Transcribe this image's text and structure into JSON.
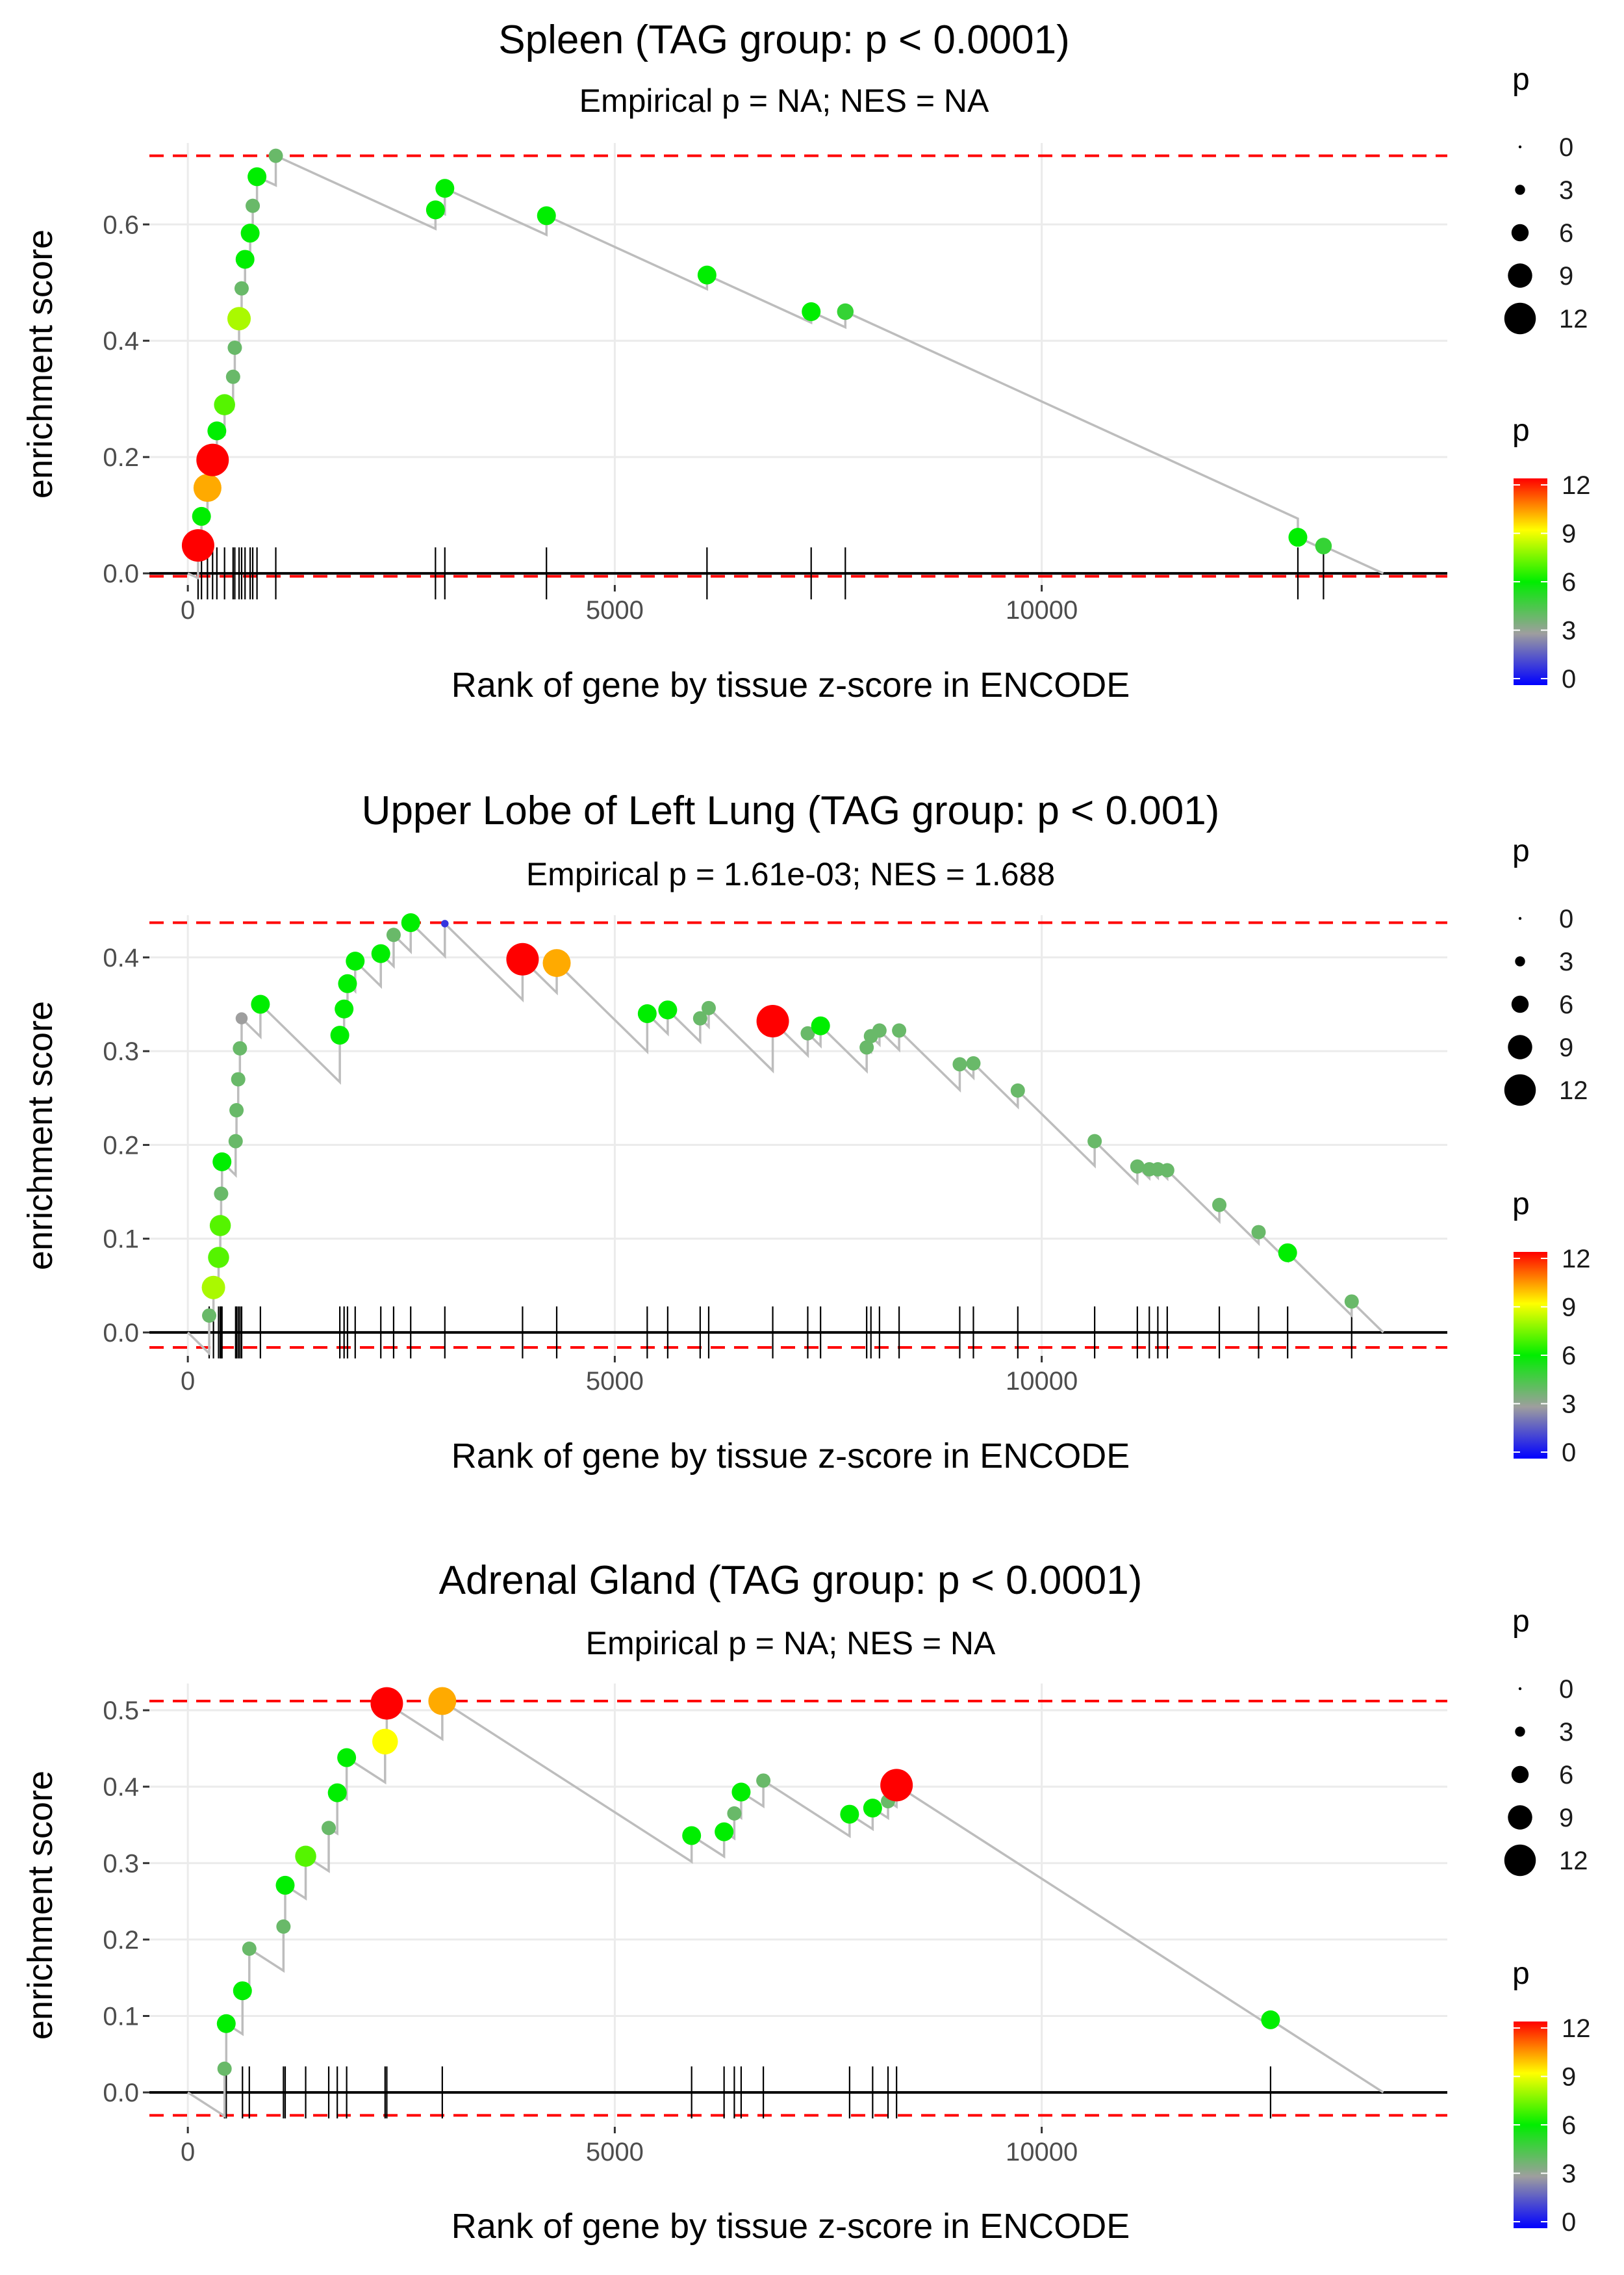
{
  "chart_data": [
    {
      "type": "scatter",
      "title": "Spleen (TAG group: p < 0.0001)",
      "subtitle": "Empirical p = NA; NES = NA",
      "xlabel": "Rank of gene by tissue z-score in ENCODE",
      "ylabel": "enrichment score",
      "xlim": [
        -450,
        14750
      ],
      "ylim": [
        -0.02,
        0.74
      ],
      "xticks": [
        0,
        5000,
        10000
      ],
      "yticks": [
        0.0,
        0.2,
        0.4,
        0.6
      ],
      "ytick_labels": [
        "0.0",
        "0.2",
        "0.4",
        "0.6"
      ],
      "max_line": 0.718,
      "min_line": -0.005,
      "end_x": 14000,
      "points": [
        {
          "x": 120,
          "y": 0.048,
          "p": 12
        },
        {
          "x": 160,
          "y": 0.098,
          "p": 6
        },
        {
          "x": 230,
          "y": 0.147,
          "p": 10
        },
        {
          "x": 290,
          "y": 0.195,
          "p": 12
        },
        {
          "x": 340,
          "y": 0.245,
          "p": 6
        },
        {
          "x": 430,
          "y": 0.29,
          "p": 7
        },
        {
          "x": 530,
          "y": 0.338,
          "p": 4
        },
        {
          "x": 550,
          "y": 0.388,
          "p": 4
        },
        {
          "x": 600,
          "y": 0.438,
          "p": 8
        },
        {
          "x": 630,
          "y": 0.49,
          "p": 4
        },
        {
          "x": 670,
          "y": 0.54,
          "p": 6
        },
        {
          "x": 730,
          "y": 0.585,
          "p": 6
        },
        {
          "x": 760,
          "y": 0.632,
          "p": 4
        },
        {
          "x": 810,
          "y": 0.682,
          "p": 6
        },
        {
          "x": 1030,
          "y": 0.718,
          "p": 4
        },
        {
          "x": 2900,
          "y": 0.625,
          "p": 6
        },
        {
          "x": 3010,
          "y": 0.662,
          "p": 6
        },
        {
          "x": 4200,
          "y": 0.615,
          "p": 6
        },
        {
          "x": 6080,
          "y": 0.513,
          "p": 6
        },
        {
          "x": 7300,
          "y": 0.45,
          "p": 6
        },
        {
          "x": 7700,
          "y": 0.45,
          "p": 5
        },
        {
          "x": 13000,
          "y": 0.062,
          "p": 6
        },
        {
          "x": 13300,
          "y": 0.047,
          "p": 5
        }
      ],
      "size_legend": {
        "title": "p",
        "labels": [
          "0",
          "3",
          "6",
          "9",
          "12"
        ]
      },
      "color_legend": {
        "title": "p",
        "labels": [
          "12",
          "9",
          "6",
          "3",
          "0"
        ]
      }
    },
    {
      "type": "scatter",
      "title": "Upper Lobe of Left Lung (TAG group: p < 0.001)",
      "subtitle": "Empirical p = 1.61e-03; NES = 1.688",
      "xlabel": "Rank of gene by tissue z-score in ENCODE",
      "ylabel": "enrichment score",
      "xlim": [
        -450,
        14750
      ],
      "ylim": [
        -0.025,
        0.445
      ],
      "xticks": [
        0,
        5000,
        10000
      ],
      "yticks": [
        0.0,
        0.1,
        0.2,
        0.3,
        0.4
      ],
      "ytick_labels": [
        "0.0",
        "0.1",
        "0.2",
        "0.3",
        "0.4"
      ],
      "max_line": 0.437,
      "min_line": -0.016,
      "end_x": 14000,
      "points": [
        {
          "x": 250,
          "y": 0.018,
          "p": 4
        },
        {
          "x": 300,
          "y": 0.048,
          "p": 8
        },
        {
          "x": 360,
          "y": 0.08,
          "p": 7
        },
        {
          "x": 380,
          "y": 0.114,
          "p": 7
        },
        {
          "x": 390,
          "y": 0.148,
          "p": 4
        },
        {
          "x": 400,
          "y": 0.182,
          "p": 6
        },
        {
          "x": 560,
          "y": 0.204,
          "p": 4
        },
        {
          "x": 570,
          "y": 0.237,
          "p": 4
        },
        {
          "x": 590,
          "y": 0.27,
          "p": 4
        },
        {
          "x": 610,
          "y": 0.303,
          "p": 4
        },
        {
          "x": 630,
          "y": 0.335,
          "p": 3
        },
        {
          "x": 850,
          "y": 0.35,
          "p": 6
        },
        {
          "x": 1780,
          "y": 0.317,
          "p": 6
        },
        {
          "x": 1830,
          "y": 0.345,
          "p": 6
        },
        {
          "x": 1870,
          "y": 0.372,
          "p": 6
        },
        {
          "x": 1960,
          "y": 0.396,
          "p": 6
        },
        {
          "x": 2260,
          "y": 0.404,
          "p": 6
        },
        {
          "x": 2410,
          "y": 0.424,
          "p": 4
        },
        {
          "x": 2610,
          "y": 0.437,
          "p": 6
        },
        {
          "x": 3010,
          "y": 0.436,
          "p": 1
        },
        {
          "x": 3920,
          "y": 0.398,
          "p": 12
        },
        {
          "x": 4320,
          "y": 0.394,
          "p": 10
        },
        {
          "x": 5380,
          "y": 0.34,
          "p": 6
        },
        {
          "x": 5620,
          "y": 0.344,
          "p": 6
        },
        {
          "x": 6000,
          "y": 0.335,
          "p": 4
        },
        {
          "x": 6100,
          "y": 0.346,
          "p": 4
        },
        {
          "x": 6850,
          "y": 0.332,
          "p": 12
        },
        {
          "x": 7260,
          "y": 0.319,
          "p": 4
        },
        {
          "x": 7410,
          "y": 0.327,
          "p": 6
        },
        {
          "x": 7950,
          "y": 0.304,
          "p": 4
        },
        {
          "x": 8000,
          "y": 0.316,
          "p": 4
        },
        {
          "x": 8100,
          "y": 0.322,
          "p": 4
        },
        {
          "x": 8330,
          "y": 0.322,
          "p": 4
        },
        {
          "x": 9040,
          "y": 0.286,
          "p": 4
        },
        {
          "x": 9200,
          "y": 0.287,
          "p": 4
        },
        {
          "x": 9720,
          "y": 0.258,
          "p": 4
        },
        {
          "x": 10620,
          "y": 0.204,
          "p": 4
        },
        {
          "x": 11120,
          "y": 0.177,
          "p": 4
        },
        {
          "x": 11260,
          "y": 0.174,
          "p": 4
        },
        {
          "x": 11360,
          "y": 0.174,
          "p": 4
        },
        {
          "x": 11470,
          "y": 0.173,
          "p": 4
        },
        {
          "x": 12080,
          "y": 0.136,
          "p": 4
        },
        {
          "x": 12540,
          "y": 0.107,
          "p": 4
        },
        {
          "x": 12880,
          "y": 0.085,
          "p": 6
        },
        {
          "x": 13630,
          "y": 0.033,
          "p": 4
        }
      ],
      "size_legend": {
        "title": "p",
        "labels": [
          "0",
          "3",
          "6",
          "9",
          "12"
        ]
      },
      "color_legend": {
        "title": "p",
        "labels": [
          "12",
          "9",
          "6",
          "3",
          "0"
        ]
      }
    },
    {
      "type": "scatter",
      "title": "Adrenal Gland (TAG group: p < 0.0001)",
      "subtitle": "Empirical p = NA; NES = NA",
      "xlabel": "Rank of gene by tissue z-score in ENCODE",
      "ylabel": "enrichment score",
      "xlim": [
        -450,
        14750
      ],
      "ylim": [
        -0.045,
        0.535
      ],
      "xticks": [
        0,
        5000,
        10000
      ],
      "yticks": [
        0.0,
        0.1,
        0.2,
        0.3,
        0.4,
        0.5
      ],
      "ytick_labels": [
        "0.0",
        "0.1",
        "0.2",
        "0.3",
        "0.4",
        "0.5"
      ],
      "max_line": 0.512,
      "min_line": -0.03,
      "end_x": 14000,
      "points": [
        {
          "x": 430,
          "y": 0.031,
          "p": 4
        },
        {
          "x": 450,
          "y": 0.09,
          "p": 6
        },
        {
          "x": 640,
          "y": 0.133,
          "p": 6
        },
        {
          "x": 720,
          "y": 0.188,
          "p": 4
        },
        {
          "x": 1120,
          "y": 0.217,
          "p": 4
        },
        {
          "x": 1140,
          "y": 0.271,
          "p": 6
        },
        {
          "x": 1380,
          "y": 0.309,
          "p": 7
        },
        {
          "x": 1650,
          "y": 0.346,
          "p": 4
        },
        {
          "x": 1750,
          "y": 0.392,
          "p": 6
        },
        {
          "x": 1860,
          "y": 0.438,
          "p": 6
        },
        {
          "x": 2310,
          "y": 0.459,
          "p": 9
        },
        {
          "x": 2330,
          "y": 0.509,
          "p": 12
        },
        {
          "x": 2980,
          "y": 0.512,
          "p": 10
        },
        {
          "x": 5900,
          "y": 0.336,
          "p": 6
        },
        {
          "x": 6280,
          "y": 0.341,
          "p": 6
        },
        {
          "x": 6400,
          "y": 0.365,
          "p": 4
        },
        {
          "x": 6480,
          "y": 0.393,
          "p": 6
        },
        {
          "x": 6740,
          "y": 0.408,
          "p": 4
        },
        {
          "x": 7750,
          "y": 0.364,
          "p": 6
        },
        {
          "x": 8020,
          "y": 0.372,
          "p": 6
        },
        {
          "x": 8200,
          "y": 0.381,
          "p": 4
        },
        {
          "x": 8300,
          "y": 0.402,
          "p": 12
        },
        {
          "x": 12680,
          "y": 0.095,
          "p": 6
        }
      ],
      "size_legend": {
        "title": "p",
        "labels": [
          "0",
          "3",
          "6",
          "9",
          "12"
        ]
      },
      "color_legend": {
        "title": "p",
        "labels": [
          "12",
          "9",
          "6",
          "3",
          "0"
        ]
      }
    }
  ]
}
